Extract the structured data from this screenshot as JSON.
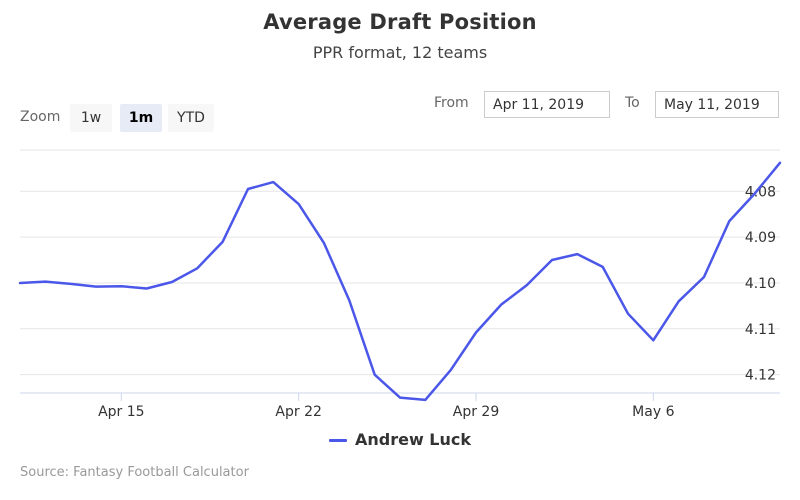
{
  "chart_data": {
    "type": "line",
    "title": "Average Draft Position",
    "subtitle": "PPR format, 12 teams",
    "xlabel": "",
    "ylabel": "",
    "y_reversed": true,
    "ylim": [
      4.124,
      4.071
    ],
    "yticks": [
      "4.08",
      "4.09",
      "4.10",
      "4.11",
      "4.12"
    ],
    "xticks": [
      "Apr 15",
      "Apr 22",
      "Apr 29",
      "May 6"
    ],
    "grid": "horizontal",
    "legend_position": "bottom-center",
    "series": [
      {
        "name": "Andrew Luck",
        "color": "#4b57e8",
        "points": [
          [
            "Apr 11",
            4.1
          ],
          [
            "Apr 12",
            4.0997
          ],
          [
            "Apr 13",
            4.1002
          ],
          [
            "Apr 14",
            4.1008
          ],
          [
            "Apr 15",
            4.1007
          ],
          [
            "Apr 16",
            4.1012
          ],
          [
            "Apr 17",
            4.0998
          ],
          [
            "Apr 18",
            4.0968
          ],
          [
            "Apr 19",
            4.091
          ],
          [
            "Apr 20",
            4.0795
          ],
          [
            "Apr 21",
            4.078
          ],
          [
            "Apr 22",
            4.0828
          ],
          [
            "Apr 23",
            4.0913
          ],
          [
            "Apr 24",
            4.1038
          ],
          [
            "Apr 25",
            4.12
          ],
          [
            "Apr 26",
            4.125
          ],
          [
            "Apr 27",
            4.1255
          ],
          [
            "Apr 28",
            4.119
          ],
          [
            "Apr 29",
            4.1108
          ],
          [
            "Apr 30",
            4.1047
          ],
          [
            "May 1",
            4.1005
          ],
          [
            "May 2",
            4.095
          ],
          [
            "May 3",
            4.0937
          ],
          [
            "May 4",
            4.0965
          ],
          [
            "May 5",
            4.1067
          ],
          [
            "May 6",
            4.1125
          ],
          [
            "May 7",
            4.104
          ],
          [
            "May 8",
            4.0987
          ],
          [
            "May 9",
            4.0865
          ],
          [
            "May 10",
            4.0805
          ],
          [
            "May 11",
            4.0738
          ]
        ]
      }
    ]
  },
  "controls": {
    "zoom_label": "Zoom",
    "zoom_options": [
      "1w",
      "1m",
      "YTD"
    ],
    "zoom_selected": "1m",
    "from_label": "From",
    "from_value": "Apr 11, 2019",
    "to_label": "To",
    "to_value": "May 11, 2019"
  },
  "credit": "Source: Fantasy Football Calculator"
}
